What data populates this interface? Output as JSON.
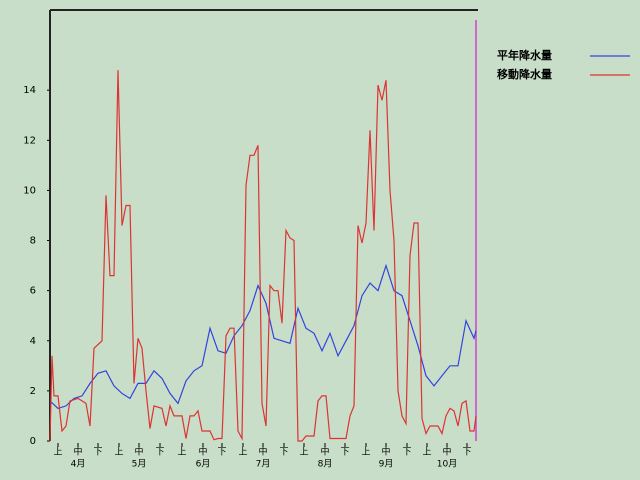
{
  "chart_data": {
    "type": "line",
    "legend": "top-right",
    "xlim": [
      0,
      214
    ],
    "ylim": [
      0,
      17.2
    ],
    "yticks": [
      0,
      2,
      4,
      6,
      8,
      10,
      12,
      14
    ],
    "xticks": [
      {
        "value": 4,
        "label": "上"
      },
      {
        "value": 14,
        "label": "中"
      },
      {
        "value": 24,
        "label": "下"
      },
      {
        "value": 34.5,
        "label": "上"
      },
      {
        "value": 44.5,
        "label": "中"
      },
      {
        "value": 55,
        "label": "下"
      },
      {
        "value": 66,
        "label": "上"
      },
      {
        "value": 76.5,
        "label": "中"
      },
      {
        "value": 86,
        "label": "下"
      },
      {
        "value": 96.5,
        "label": "上"
      },
      {
        "value": 106.5,
        "label": "中"
      },
      {
        "value": 117,
        "label": "下"
      },
      {
        "value": 127,
        "label": "上"
      },
      {
        "value": 137.5,
        "label": "中"
      },
      {
        "value": 147.5,
        "label": "下"
      },
      {
        "value": 158,
        "label": "上"
      },
      {
        "value": 168,
        "label": "中"
      },
      {
        "value": 178.5,
        "label": "下"
      },
      {
        "value": 188.5,
        "label": "上"
      },
      {
        "value": 198.5,
        "label": "中"
      },
      {
        "value": 208.5,
        "label": "下"
      }
    ],
    "month_ticks": [
      {
        "value": 14,
        "label": "4月"
      },
      {
        "value": 44.5,
        "label": "5月"
      },
      {
        "value": 76.5,
        "label": "6月"
      },
      {
        "value": 106.5,
        "label": "7月"
      },
      {
        "value": 137.5,
        "label": "8月"
      },
      {
        "value": 168,
        "label": "9月"
      },
      {
        "value": 198.5,
        "label": "10月"
      }
    ],
    "marker_line": {
      "value": 213,
      "color": "#cc44cc"
    },
    "series": [
      {
        "name": "平年降水量",
        "color": "#3344dd",
        "x": [
          0,
          4,
          8,
          12,
          16,
          20,
          24,
          28,
          32,
          36,
          40,
          44,
          48,
          52,
          56,
          60,
          64,
          68,
          72,
          76,
          80,
          84,
          88,
          92,
          96,
          100,
          104,
          108,
          112,
          116,
          120,
          124,
          128,
          132,
          136,
          140,
          144,
          148,
          152,
          156,
          160,
          164,
          168,
          172,
          176,
          180,
          184,
          188,
          192,
          196,
          200,
          204,
          208,
          212,
          213
        ],
        "values": [
          1.6,
          1.3,
          1.4,
          1.7,
          1.8,
          2.3,
          2.7,
          2.8,
          2.2,
          1.9,
          1.7,
          2.3,
          2.3,
          2.8,
          2.5,
          1.9,
          1.5,
          2.4,
          2.8,
          3.0,
          4.5,
          3.6,
          3.5,
          4.2,
          4.6,
          5.2,
          6.2,
          5.5,
          4.1,
          4.0,
          3.9,
          5.3,
          4.5,
          4.3,
          3.6,
          4.3,
          3.4,
          4.0,
          4.6,
          5.8,
          6.3,
          6.0,
          7.0,
          6.0,
          5.8,
          4.8,
          3.8,
          2.6,
          2.2,
          2.6,
          3.0,
          3.0,
          4.8,
          4.1,
          4.4
        ]
      },
      {
        "name": "移動降水量",
        "color": "#dd3333",
        "x": [
          0,
          1,
          2,
          4,
          6,
          8,
          10,
          14,
          18,
          20,
          22,
          26,
          28,
          30,
          32,
          34,
          36,
          38,
          40,
          42,
          44,
          46,
          48,
          50,
          52,
          56,
          58,
          60,
          62,
          66,
          68,
          70,
          72,
          74,
          76,
          80,
          82,
          84,
          86,
          88,
          90,
          92,
          94,
          96,
          98,
          100,
          102,
          104,
          106,
          108,
          110,
          112,
          114,
          116,
          118,
          120,
          122,
          124,
          126,
          128,
          132,
          134,
          136,
          138,
          140,
          144,
          148,
          150,
          152,
          154,
          156,
          158,
          160,
          162,
          164,
          166,
          168,
          170,
          172,
          174,
          176,
          178,
          180,
          182,
          184,
          186,
          188,
          190,
          194,
          196,
          198,
          200,
          202,
          204,
          206,
          208,
          210,
          212,
          213
        ],
        "values": [
          0,
          3.4,
          1.8,
          1.8,
          0.4,
          0.6,
          1.6,
          1.7,
          1.5,
          0.6,
          3.7,
          4.0,
          9.8,
          6.6,
          6.6,
          14.8,
          8.6,
          9.4,
          9.4,
          2.3,
          4.1,
          3.7,
          2.0,
          0.5,
          1.4,
          1.3,
          0.6,
          1.4,
          1.0,
          1.0,
          0.1,
          1.0,
          1.0,
          1.2,
          0.4,
          0.4,
          0.05,
          0.1,
          0.1,
          4.2,
          4.5,
          4.5,
          0.4,
          0.1,
          10.2,
          11.4,
          11.4,
          11.8,
          1.5,
          0.6,
          6.2,
          6.0,
          6.0,
          4.7,
          8.4,
          8.1,
          8.0,
          0.0,
          0.0,
          0.2,
          0.2,
          1.6,
          1.8,
          1.8,
          0.1,
          0.1,
          0.1,
          1.0,
          1.4,
          8.6,
          7.9,
          8.7,
          12.4,
          8.4,
          14.2,
          13.6,
          14.4,
          10.0,
          8.0,
          2.0,
          1.0,
          0.7,
          7.4,
          8.7,
          8.7,
          0.9,
          0.3,
          0.6,
          0.6,
          0.3,
          1.0,
          1.3,
          1.2,
          0.6,
          1.5,
          1.6,
          0.4,
          0.4,
          1.0
        ]
      }
    ]
  }
}
